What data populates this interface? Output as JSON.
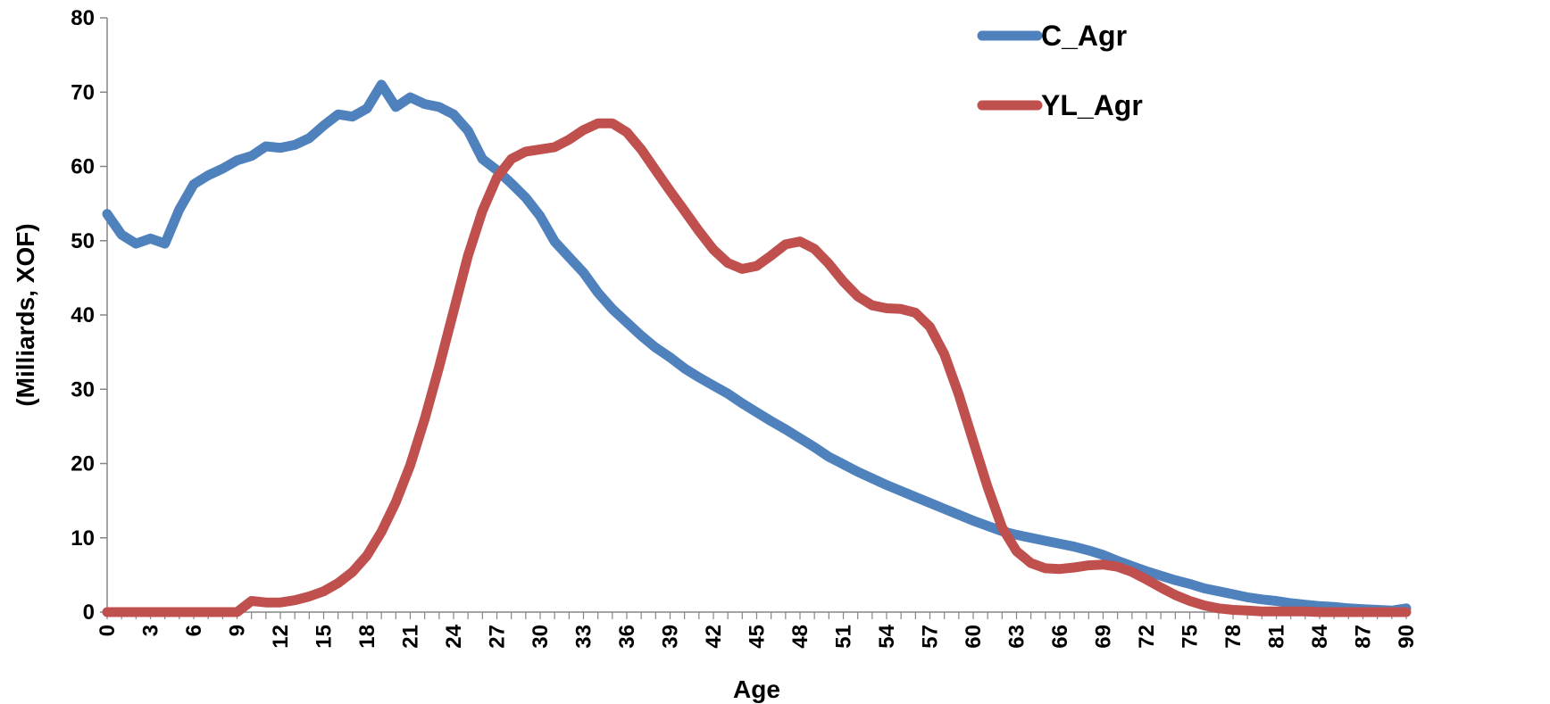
{
  "chart_data": {
    "type": "line",
    "title": "",
    "xlabel": "Age",
    "ylabel": "(Milliards, XOF)",
    "xlim": [
      0,
      90
    ],
    "ylim": [
      0,
      80
    ],
    "yticks": [
      0,
      10,
      20,
      30,
      40,
      50,
      60,
      70,
      80
    ],
    "xticks": [
      0,
      3,
      6,
      9,
      12,
      15,
      18,
      21,
      24,
      27,
      30,
      33,
      36,
      39,
      42,
      45,
      48,
      51,
      54,
      57,
      60,
      63,
      66,
      69,
      72,
      75,
      78,
      81,
      84,
      87,
      90
    ],
    "grid": false,
    "legend_position": "top-right",
    "series": [
      {
        "name": "C_Agr",
        "color": "#4f81bd",
        "x": [
          0,
          1,
          2,
          3,
          4,
          5,
          6,
          7,
          8,
          9,
          10,
          11,
          12,
          13,
          14,
          15,
          16,
          17,
          18,
          19,
          20,
          21,
          22,
          23,
          24,
          25,
          26,
          27,
          28,
          29,
          30,
          31,
          32,
          33,
          34,
          35,
          36,
          37,
          38,
          39,
          40,
          41,
          42,
          43,
          44,
          45,
          46,
          47,
          48,
          49,
          50,
          51,
          52,
          53,
          54,
          55,
          56,
          57,
          58,
          59,
          60,
          61,
          62,
          63,
          64,
          65,
          66,
          67,
          68,
          69,
          70,
          71,
          72,
          73,
          74,
          75,
          76,
          77,
          78,
          79,
          80,
          81,
          82,
          83,
          84,
          85,
          86,
          87,
          88,
          89,
          90
        ],
        "values": [
          53.6,
          50.8,
          49.6,
          50.3,
          49.6,
          54.2,
          57.6,
          58.8,
          59.7,
          60.8,
          61.4,
          62.7,
          62.5,
          62.9,
          63.8,
          65.5,
          67.0,
          66.7,
          67.8,
          71.0,
          68.0,
          69.3,
          68.4,
          68.0,
          67.0,
          64.8,
          61.0,
          59.5,
          57.7,
          55.8,
          53.3,
          49.9,
          47.8,
          45.7,
          43.0,
          40.8,
          39.0,
          37.2,
          35.6,
          34.3,
          32.8,
          31.6,
          30.5,
          29.4,
          28.1,
          26.9,
          25.7,
          24.6,
          23.4,
          22.2,
          20.9,
          19.9,
          18.9,
          18.0,
          17.1,
          16.3,
          15.5,
          14.7,
          13.9,
          13.1,
          12.3,
          11.6,
          10.9,
          10.4,
          10.0,
          9.6,
          9.2,
          8.8,
          8.3,
          7.7,
          6.9,
          6.2,
          5.5,
          4.9,
          4.3,
          3.8,
          3.2,
          2.8,
          2.4,
          2.0,
          1.7,
          1.5,
          1.2,
          1.0,
          0.8,
          0.7,
          0.5,
          0.4,
          0.3,
          0.2,
          0.5
        ]
      },
      {
        "name": "YL_Agr",
        "color": "#c0504d",
        "x": [
          0,
          1,
          2,
          3,
          4,
          5,
          6,
          7,
          8,
          9,
          10,
          11,
          12,
          13,
          14,
          15,
          16,
          17,
          18,
          19,
          20,
          21,
          22,
          23,
          24,
          25,
          26,
          27,
          28,
          29,
          30,
          31,
          32,
          33,
          34,
          35,
          36,
          37,
          38,
          39,
          40,
          41,
          42,
          43,
          44,
          45,
          46,
          47,
          48,
          49,
          50,
          51,
          52,
          53,
          54,
          55,
          56,
          57,
          58,
          59,
          60,
          61,
          62,
          63,
          64,
          65,
          66,
          67,
          68,
          69,
          70,
          71,
          72,
          73,
          74,
          75,
          76,
          77,
          78,
          79,
          80,
          81,
          82,
          83,
          84,
          85,
          86,
          87,
          88,
          89,
          90
        ],
        "values": [
          0,
          0,
          0,
          0,
          0,
          0,
          0,
          0,
          0,
          0,
          1.5,
          1.3,
          1.3,
          1.6,
          2.1,
          2.8,
          3.9,
          5.4,
          7.6,
          10.8,
          14.8,
          19.8,
          26.0,
          33.0,
          40.5,
          48.0,
          54.0,
          58.5,
          61.0,
          62.0,
          62.3,
          62.6,
          63.6,
          64.9,
          65.8,
          65.8,
          64.6,
          62.3,
          59.5,
          56.7,
          54.0,
          51.3,
          48.8,
          47.0,
          46.2,
          46.6,
          48.0,
          49.5,
          49.9,
          48.9,
          46.9,
          44.5,
          42.5,
          41.3,
          40.9,
          40.8,
          40.3,
          38.4,
          34.7,
          29.3,
          23.0,
          16.8,
          11.4,
          8.2,
          6.6,
          5.9,
          5.8,
          6.0,
          6.3,
          6.4,
          6.1,
          5.4,
          4.4,
          3.3,
          2.3,
          1.5,
          0.9,
          0.5,
          0.3,
          0.2,
          0.1,
          0.1,
          0.1,
          0.1,
          0,
          0,
          0,
          0,
          0,
          0,
          0
        ]
      }
    ]
  }
}
